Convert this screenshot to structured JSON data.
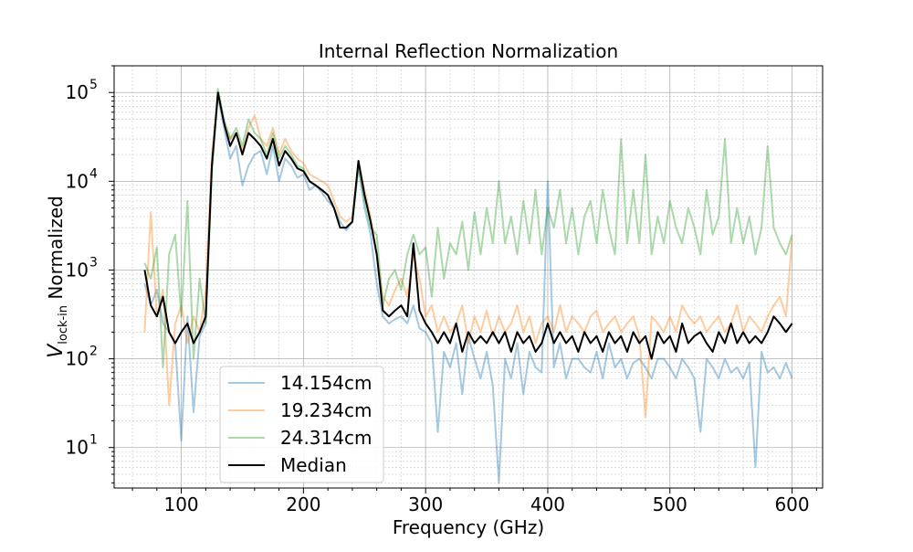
{
  "chart_data": {
    "type": "line",
    "title": "Internal Reflection Normalization",
    "xlabel": "Frequency (GHz)",
    "ylabel": {
      "base": "V",
      "subscript": "lock-in",
      "suffix": " Normalized"
    },
    "xlim": [
      45,
      625
    ],
    "ylim": [
      3.5,
      200000
    ],
    "yscale": "log",
    "grid": true,
    "legend_position": "lower-left",
    "x_ticks": [
      {
        "value": 100,
        "label": "100"
      },
      {
        "value": 200,
        "label": "200"
      },
      {
        "value": 300,
        "label": "300"
      },
      {
        "value": 400,
        "label": "400"
      },
      {
        "value": 500,
        "label": "500"
      },
      {
        "value": 600,
        "label": "600"
      }
    ],
    "y_ticks": [
      {
        "value": 10,
        "base": "10",
        "exp": "1"
      },
      {
        "value": 100,
        "base": "10",
        "exp": "2"
      },
      {
        "value": 1000,
        "base": "10",
        "exp": "3"
      },
      {
        "value": 10000,
        "base": "10",
        "exp": "4"
      },
      {
        "value": 100000,
        "base": "10",
        "exp": "5"
      }
    ],
    "series": [
      {
        "name": "14.154cm",
        "color": "#1f77b4",
        "opacity": 0.4,
        "x": [
          70,
          75,
          80,
          85,
          90,
          95,
          100,
          105,
          110,
          115,
          120,
          125,
          130,
          135,
          140,
          145,
          150,
          155,
          160,
          165,
          170,
          175,
          180,
          185,
          190,
          195,
          200,
          205,
          210,
          215,
          220,
          225,
          230,
          235,
          240,
          245,
          250,
          255,
          260,
          265,
          270,
          275,
          280,
          285,
          290,
          295,
          300,
          305,
          310,
          315,
          320,
          325,
          330,
          335,
          340,
          345,
          350,
          355,
          360,
          365,
          370,
          375,
          380,
          385,
          390,
          395,
          400,
          405,
          410,
          415,
          420,
          425,
          430,
          435,
          440,
          445,
          450,
          455,
          460,
          465,
          470,
          475,
          480,
          485,
          490,
          495,
          500,
          505,
          510,
          515,
          520,
          525,
          530,
          535,
          540,
          545,
          550,
          555,
          560,
          565,
          570,
          575,
          580,
          585,
          590,
          595,
          600
        ],
        "y": [
          700,
          400,
          600,
          250,
          200,
          150,
          12,
          300,
          25,
          180,
          250,
          14000,
          90000,
          40000,
          18000,
          25000,
          9000,
          15000,
          20000,
          22000,
          12000,
          25000,
          10000,
          18000,
          15000,
          11000,
          12000,
          8000,
          9000,
          7500,
          6000,
          5000,
          3500,
          2800,
          3500,
          15000,
          5000,
          2500,
          700,
          300,
          250,
          280,
          300,
          250,
          400,
          220,
          200,
          150,
          15,
          120,
          80,
          150,
          40,
          180,
          100,
          60,
          120,
          50,
          4,
          100,
          60,
          150,
          40,
          120,
          80,
          70,
          10000,
          80,
          150,
          60,
          100,
          100,
          80,
          70,
          120,
          60,
          150,
          80,
          100,
          60,
          90,
          100,
          80,
          60,
          100,
          100,
          80,
          60,
          100,
          80,
          60,
          15,
          100,
          80,
          60,
          100,
          70,
          80,
          60,
          90,
          6,
          120,
          70,
          80,
          60,
          90,
          60
        ]
      },
      {
        "name": "19.234cm",
        "color": "#ff7f0e",
        "opacity": 0.4,
        "x": [
          70,
          75,
          80,
          85,
          90,
          95,
          100,
          105,
          110,
          115,
          120,
          125,
          130,
          135,
          140,
          145,
          150,
          155,
          160,
          165,
          170,
          175,
          180,
          185,
          190,
          195,
          200,
          205,
          210,
          215,
          220,
          225,
          230,
          235,
          240,
          245,
          250,
          255,
          260,
          265,
          270,
          275,
          280,
          285,
          290,
          295,
          300,
          305,
          310,
          315,
          320,
          325,
          330,
          335,
          340,
          345,
          350,
          355,
          360,
          365,
          370,
          375,
          380,
          385,
          390,
          395,
          400,
          405,
          410,
          415,
          420,
          425,
          430,
          435,
          440,
          445,
          450,
          455,
          460,
          465,
          470,
          475,
          480,
          485,
          490,
          495,
          500,
          505,
          510,
          515,
          520,
          525,
          530,
          535,
          540,
          545,
          550,
          555,
          560,
          565,
          570,
          575,
          580,
          585,
          590,
          595,
          600
        ],
        "y": [
          200,
          4500,
          300,
          600,
          30,
          250,
          400,
          150,
          300,
          200,
          600,
          20000,
          95000,
          45000,
          30000,
          35000,
          22000,
          40000,
          55000,
          30000,
          25000,
          40000,
          20000,
          30000,
          22000,
          18000,
          16000,
          12000,
          11000,
          10000,
          9000,
          6000,
          4000,
          3500,
          4000,
          16000,
          8000,
          4000,
          1500,
          500,
          400,
          600,
          800,
          500,
          1500,
          800,
          300,
          400,
          200,
          300,
          200,
          250,
          400,
          150,
          300,
          200,
          350,
          180,
          300,
          200,
          250,
          400,
          200,
          300,
          150,
          250,
          300,
          200,
          400,
          200,
          300,
          250,
          200,
          300,
          350,
          200,
          250,
          300,
          200,
          250,
          300,
          180,
          22,
          300,
          250,
          200,
          300,
          200,
          400,
          300,
          250,
          300,
          200,
          250,
          300,
          200,
          250,
          400,
          200,
          300,
          250,
          200,
          300,
          400,
          500,
          300,
          2300
        ]
      },
      {
        "name": "24.314cm",
        "color": "#2ca02c",
        "opacity": 0.4,
        "x": [
          70,
          75,
          80,
          85,
          90,
          95,
          100,
          105,
          110,
          115,
          120,
          125,
          130,
          135,
          140,
          145,
          150,
          155,
          160,
          165,
          170,
          175,
          180,
          185,
          190,
          195,
          200,
          205,
          210,
          215,
          220,
          225,
          230,
          235,
          240,
          245,
          250,
          255,
          260,
          265,
          270,
          275,
          280,
          285,
          290,
          295,
          300,
          305,
          310,
          315,
          320,
          325,
          330,
          335,
          340,
          345,
          350,
          355,
          360,
          365,
          370,
          375,
          380,
          385,
          390,
          395,
          400,
          405,
          410,
          415,
          420,
          425,
          430,
          435,
          440,
          445,
          450,
          455,
          460,
          465,
          470,
          475,
          480,
          485,
          490,
          495,
          500,
          505,
          510,
          515,
          520,
          525,
          530,
          535,
          540,
          545,
          550,
          555,
          560,
          565,
          570,
          575,
          580,
          585,
          590,
          595,
          600
        ],
        "y": [
          1200,
          800,
          1800,
          80,
          1500,
          2500,
          300,
          6000,
          100,
          800,
          250,
          12000,
          110000,
          50000,
          30000,
          40000,
          25000,
          50000,
          35000,
          30000,
          20000,
          35000,
          18000,
          25000,
          20000,
          15000,
          14000,
          10000,
          9000,
          8000,
          7000,
          5000,
          3000,
          3000,
          3500,
          14000,
          6000,
          3000,
          2500,
          400,
          800,
          1000,
          600,
          1500,
          2500,
          1500,
          1800,
          500,
          3000,
          800,
          2000,
          1500,
          3500,
          1000,
          4500,
          1500,
          5000,
          2000,
          10000,
          2000,
          4000,
          1500,
          6000,
          2000,
          8000,
          1500,
          5000,
          3000,
          8000,
          2000,
          5000,
          1500,
          4000,
          6000,
          2000,
          8000,
          3000,
          1500,
          30000,
          2000,
          8000,
          2000,
          20000,
          1500,
          4000,
          2000,
          6000,
          3000,
          2000,
          5000,
          3000,
          1500,
          8000,
          2500,
          4000,
          30000,
          2000,
          5000,
          2000,
          4000,
          1500,
          3000,
          25000,
          3000,
          2000,
          1500,
          2500
        ]
      },
      {
        "name": "Median",
        "color": "#000000",
        "opacity": 1,
        "x": [
          70,
          75,
          80,
          85,
          90,
          95,
          100,
          105,
          110,
          115,
          120,
          125,
          130,
          135,
          140,
          145,
          150,
          155,
          160,
          165,
          170,
          175,
          180,
          185,
          190,
          195,
          200,
          205,
          210,
          215,
          220,
          225,
          230,
          235,
          240,
          245,
          250,
          255,
          260,
          265,
          270,
          275,
          280,
          285,
          290,
          295,
          300,
          305,
          310,
          315,
          320,
          325,
          330,
          335,
          340,
          345,
          350,
          355,
          360,
          365,
          370,
          375,
          380,
          385,
          390,
          395,
          400,
          405,
          410,
          415,
          420,
          425,
          430,
          435,
          440,
          445,
          450,
          455,
          460,
          465,
          470,
          475,
          480,
          485,
          490,
          495,
          500,
          505,
          510,
          515,
          520,
          525,
          530,
          535,
          540,
          545,
          550,
          555,
          560,
          565,
          570,
          575,
          580,
          585,
          590,
          595,
          600
        ],
        "y": [
          1000,
          400,
          300,
          500,
          200,
          150,
          200,
          250,
          150,
          200,
          300,
          15000,
          100000,
          45000,
          25000,
          35000,
          20000,
          35000,
          30000,
          25000,
          18000,
          30000,
          15000,
          22000,
          18000,
          14000,
          13000,
          10000,
          9000,
          8000,
          7000,
          5000,
          3000,
          3000,
          3500,
          17000,
          7000,
          3500,
          1500,
          350,
          300,
          350,
          400,
          300,
          2000,
          350,
          250,
          200,
          150,
          200,
          150,
          250,
          120,
          200,
          150,
          180,
          150,
          200,
          150,
          200,
          120,
          200,
          150,
          180,
          120,
          150,
          250,
          150,
          200,
          150,
          180,
          120,
          200,
          150,
          180,
          120,
          200,
          150,
          180,
          120,
          200,
          150,
          180,
          100,
          200,
          150,
          180,
          120,
          250,
          150,
          180,
          200,
          150,
          120,
          200,
          150,
          250,
          150,
          200,
          150,
          180,
          150,
          200,
          300,
          250,
          200,
          250
        ]
      }
    ]
  }
}
